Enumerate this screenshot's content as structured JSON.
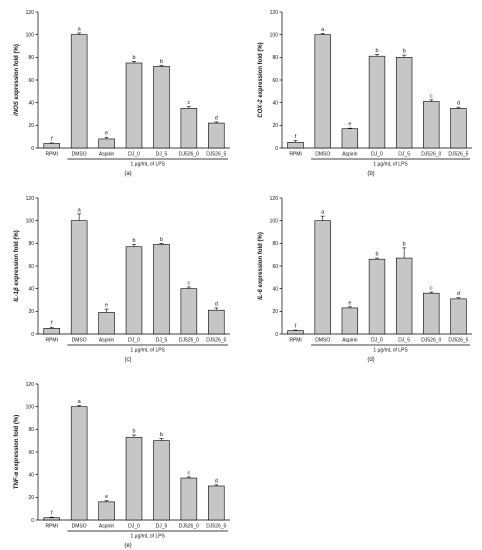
{
  "categories": [
    "RPMI",
    "DMSO",
    "Aspirin",
    "DJ_0",
    "DJ_5",
    "DJ526_0",
    "DJ526_5"
  ],
  "xlabel": "1 µg/mL of LPS",
  "ylim": [
    0,
    120
  ],
  "yticks": [
    0,
    20,
    40,
    60,
    80,
    100,
    120
  ],
  "bar_color": "#c6c6c6",
  "chart_data": [
    {
      "type": "bar",
      "panel_label": "(a)",
      "ylabel": {
        "gene": "iNOS",
        "rest": " expression fold (%)"
      },
      "categories": [
        "RPMI",
        "DMSO",
        "Aspirin",
        "DJ_0",
        "DJ_5",
        "DJ526_0",
        "DJ526_5"
      ],
      "values": [
        4,
        100,
        8,
        75,
        72,
        35,
        22
      ],
      "errors": [
        0.5,
        1.5,
        1.5,
        1.5,
        1,
        1.5,
        1
      ],
      "letters": [
        "f",
        "a",
        "e",
        "b",
        "b",
        "c",
        "d"
      ],
      "ylim": [
        0,
        120
      ]
    },
    {
      "type": "bar",
      "panel_label": "(b)",
      "ylabel": {
        "gene": "COX-2",
        "rest": " expression fold (%)"
      },
      "categories": [
        "RPMI",
        "DMSO",
        "Aspirin",
        "DJ_0",
        "DJ_5",
        "DJ526_0",
        "DJ526_5"
      ],
      "values": [
        5,
        100,
        17,
        81,
        80,
        41,
        35
      ],
      "errors": [
        1.5,
        1,
        0.5,
        1.5,
        2,
        1.5,
        1
      ],
      "letters": [
        "f",
        "a",
        "e",
        "b",
        "b",
        "c",
        "d"
      ],
      "ylim": [
        0,
        120
      ]
    },
    {
      "type": "bar",
      "panel_label": "(c)",
      "ylabel": {
        "gene": "IL-1β",
        "rest": " expression fold (%)"
      },
      "categories": [
        "RPMI",
        "DMSO",
        "Aspirin",
        "DJ_0",
        "DJ_5",
        "DJ526_0",
        "DJ526_5"
      ],
      "values": [
        5,
        100,
        19,
        77,
        79,
        40,
        21
      ],
      "errors": [
        1,
        6,
        3,
        2,
        1,
        1.5,
        2
      ],
      "letters": [
        "f",
        "a",
        "e",
        "b",
        "b",
        "c",
        "d"
      ],
      "ylim": [
        0,
        120
      ]
    },
    {
      "type": "bar",
      "panel_label": "(d)",
      "ylabel": {
        "gene": "IL-6",
        "rest": " expression fold (%)"
      },
      "categories": [
        "RPMI",
        "DMSO",
        "Aspirin",
        "DJ_0",
        "DJ_5",
        "DJ526_0",
        "DJ526_5"
      ],
      "values": [
        3,
        100,
        23,
        66,
        67,
        36,
        31
      ],
      "errors": [
        0.5,
        4,
        1,
        1,
        9,
        1,
        1
      ],
      "letters": [
        "f",
        "a",
        "e",
        "b",
        "b",
        "c",
        "d"
      ],
      "ylim": [
        0,
        120
      ]
    },
    {
      "type": "bar",
      "panel_label": "(e)",
      "ylabel": {
        "gene": "TNF-α",
        "rest": " expression fold (%)"
      },
      "categories": [
        "RPMI",
        "DMSO",
        "Aspirin",
        "DJ_0",
        "DJ_5",
        "DJ526_0",
        "DJ526_5"
      ],
      "values": [
        2,
        100,
        16,
        73,
        70,
        37,
        30
      ],
      "errors": [
        0.5,
        1,
        1,
        2,
        2,
        1,
        1
      ],
      "letters": [
        "f",
        "a",
        "e",
        "b",
        "b",
        "c",
        "d"
      ],
      "ylim": [
        0,
        120
      ]
    }
  ]
}
